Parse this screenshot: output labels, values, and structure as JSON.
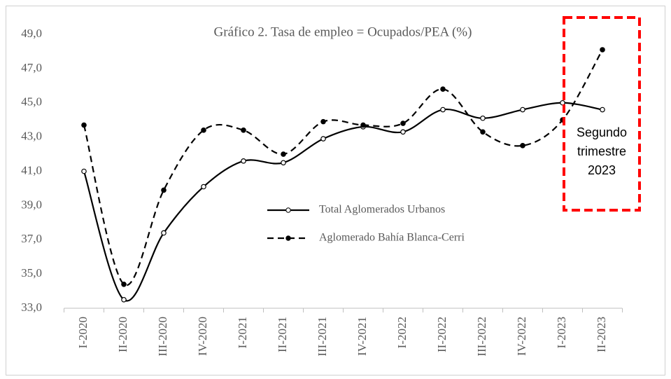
{
  "chart_data": {
    "type": "line",
    "title": "Gráfico  2. Tasa de empleo  = Ocupados/PEA  (%)",
    "categories": [
      "I-2020",
      "II-2020",
      "III-2020",
      "IV-2020",
      "I-2021",
      "II-2021",
      "III-2021",
      "IV-2021",
      "I-2022",
      "II-2022",
      "III-2022",
      "IV-2022",
      "I-2023",
      "II-2023"
    ],
    "series": [
      {
        "name": "Total Aglomerados Urbanos",
        "color": "#000000",
        "dash": false,
        "marker": "open",
        "values": [
          41.0,
          33.5,
          37.4,
          40.1,
          41.6,
          41.5,
          42.9,
          43.6,
          43.3,
          44.6,
          44.1,
          44.6,
          45.0,
          44.6
        ]
      },
      {
        "name": "Aglomerado Bahía Blanca-Cerri",
        "color": "#000000",
        "dash": true,
        "marker": "filled",
        "values": [
          43.7,
          34.4,
          39.9,
          43.4,
          43.4,
          42.0,
          43.9,
          43.7,
          43.8,
          45.8,
          43.3,
          42.5,
          44.0,
          48.1
        ]
      }
    ],
    "ylim": [
      33,
      49
    ],
    "yticks": [
      {
        "value": 33,
        "label": "33,0"
      },
      {
        "value": 35,
        "label": "35,0"
      },
      {
        "value": 37,
        "label": "37,0"
      },
      {
        "value": 39,
        "label": "39,0"
      },
      {
        "value": 41,
        "label": "41,0"
      },
      {
        "value": 43,
        "label": "43,0"
      },
      {
        "value": 45,
        "label": "45,0"
      },
      {
        "value": 47,
        "label": "47,0"
      },
      {
        "value": 49,
        "label": "49,0"
      }
    ],
    "grid": false,
    "annotation": {
      "lines": [
        "Segundo",
        "trimestre",
        "2023"
      ],
      "color": "#ff0000"
    }
  }
}
